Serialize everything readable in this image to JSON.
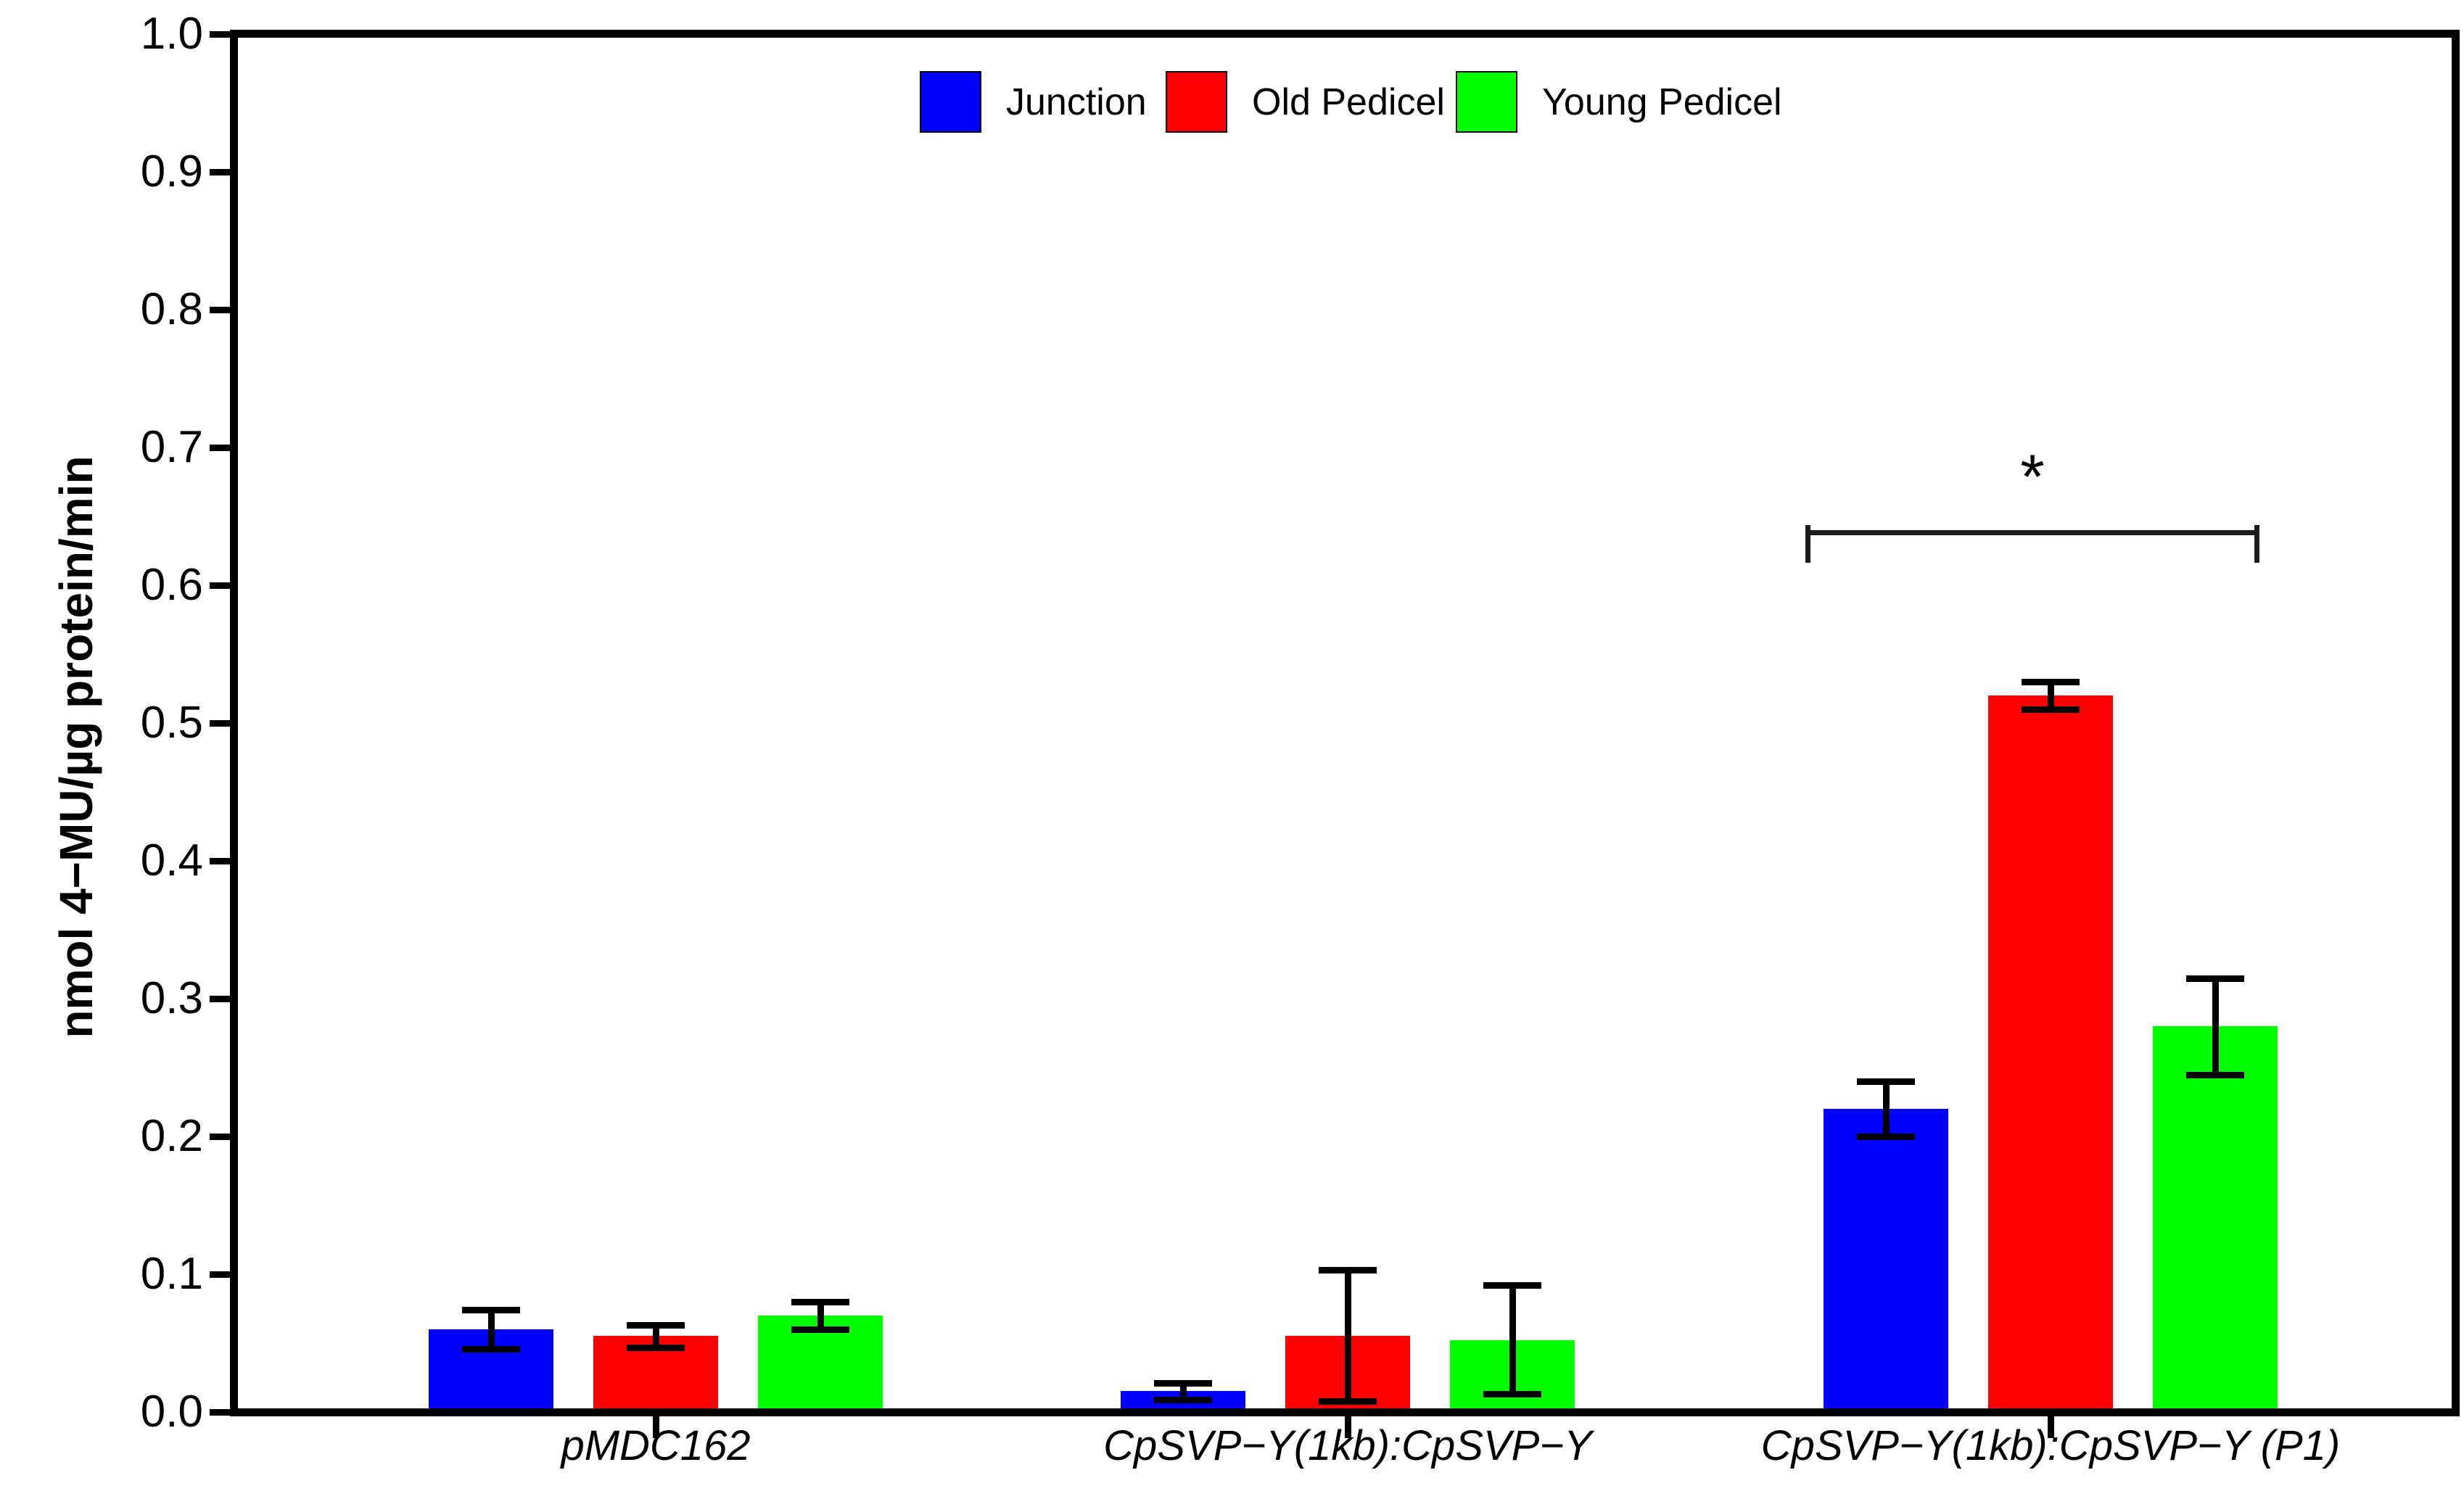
{
  "chart_data": {
    "type": "bar",
    "title": "",
    "xlabel": "",
    "ylabel": "nmol 4−MU/µg protein/min",
    "ylim": [
      0.0,
      1.0
    ],
    "y_ticks": [
      "0.0",
      "0.1",
      "0.2",
      "0.3",
      "0.4",
      "0.5",
      "0.6",
      "0.7",
      "0.8",
      "0.9",
      "1.0"
    ],
    "grid": false,
    "legend_position": "top-center-horizontal",
    "categories": [
      "pMDC162",
      "CpSVP−Y(1kb):CpSVP−Y",
      "CpSVP−Y(1kb):CpSVP−Y (P1)"
    ],
    "series": [
      {
        "name": "Junction",
        "color": "#0000FF",
        "values": [
          0.06,
          0.015,
          0.22
        ],
        "error_low": [
          0.046,
          0.009,
          0.2
        ],
        "error_high": [
          0.074,
          0.021,
          0.24
        ]
      },
      {
        "name": "Old Pedicel",
        "color": "#FF0000",
        "values": [
          0.055,
          0.055,
          0.52
        ],
        "error_low": [
          0.047,
          0.008,
          0.51
        ],
        "error_high": [
          0.063,
          0.103,
          0.53
        ]
      },
      {
        "name": "Young Pedicel",
        "color": "#00FF00",
        "values": [
          0.07,
          0.052,
          0.28
        ],
        "error_low": [
          0.06,
          0.013,
          0.245
        ],
        "error_high": [
          0.08,
          0.092,
          0.315
        ]
      }
    ],
    "annotations": [
      {
        "type": "significance-bracket",
        "label": "*",
        "category": "CpSVP−Y(1kb):CpSVP−Y (P1)",
        "spans": "Junction to Young Pedicel",
        "y_value": 0.64
      }
    ]
  }
}
